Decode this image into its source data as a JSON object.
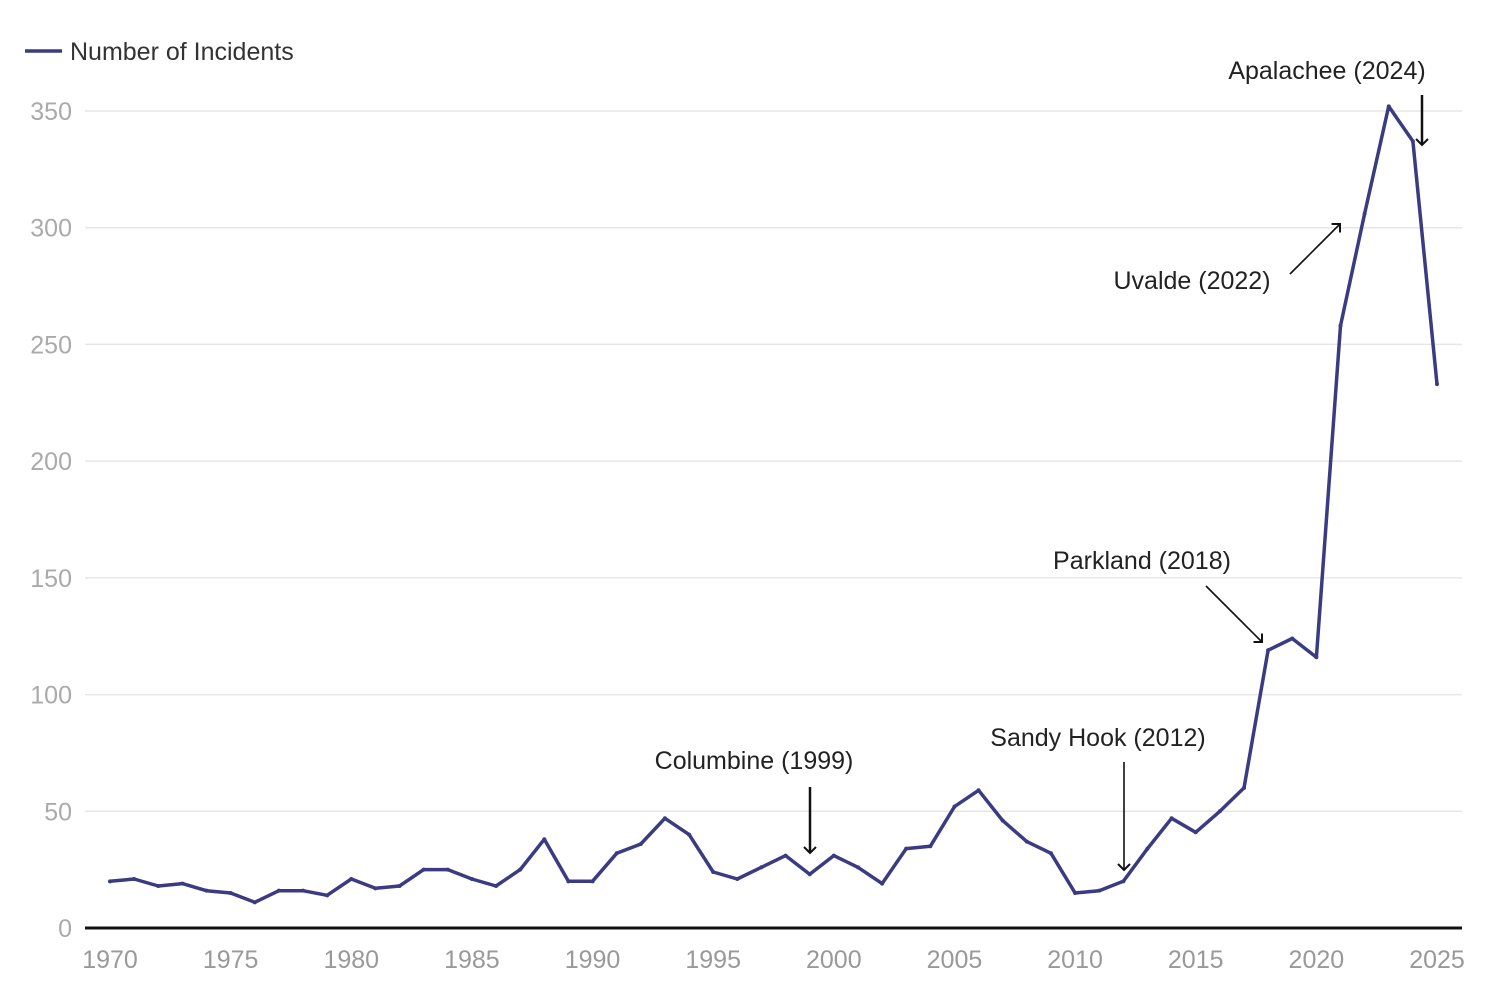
{
  "chart_data": {
    "type": "line",
    "title": "",
    "xlabel": "",
    "ylabel": "",
    "xlim": [
      1970,
      2025
    ],
    "ylim": [
      0,
      350
    ],
    "grid": true,
    "legend_placement": "top-left",
    "x_ticks": [
      "1970",
      "1975",
      "1980",
      "1985",
      "1990",
      "1995",
      "2000",
      "2005",
      "2010",
      "2015",
      "2020",
      "2025"
    ],
    "y_ticks": [
      "0",
      "50",
      "100",
      "150",
      "200",
      "250",
      "300",
      "350"
    ],
    "series": [
      {
        "name": "Number of Incidents",
        "color": "#3b3b82",
        "x": [
          1970,
          1971,
          1972,
          1973,
          1974,
          1975,
          1976,
          1977,
          1978,
          1979,
          1980,
          1981,
          1982,
          1983,
          1984,
          1985,
          1986,
          1987,
          1988,
          1989,
          1990,
          1991,
          1992,
          1993,
          1994,
          1995,
          1996,
          1997,
          1998,
          1999,
          2000,
          2001,
          2002,
          2003,
          2004,
          2005,
          2006,
          2007,
          2008,
          2009,
          2010,
          2011,
          2012,
          2013,
          2014,
          2015,
          2016,
          2017,
          2018,
          2019,
          2020,
          2021,
          2022,
          2023,
          2024,
          2025
        ],
        "values": [
          20,
          21,
          18,
          19,
          16,
          15,
          11,
          16,
          16,
          14,
          21,
          17,
          18,
          25,
          25,
          21,
          18,
          25,
          38,
          20,
          20,
          32,
          36,
          47,
          40,
          24,
          21,
          26,
          31,
          23,
          31,
          26,
          19,
          34,
          35,
          52,
          59,
          46,
          37,
          32,
          15,
          16,
          20,
          34,
          47,
          41,
          50,
          60,
          119,
          124,
          116,
          258,
          306,
          352,
          337,
          233
        ]
      }
    ],
    "annotations": [
      {
        "label": "Columbine (1999)",
        "year": 1999
      },
      {
        "label": "Sandy Hook (2012)",
        "year": 2012
      },
      {
        "label": "Parkland (2018)",
        "year": 2018
      },
      {
        "label": "Uvalde (2022)",
        "year": 2022
      },
      {
        "label": "Apalachee (2024)",
        "year": 2024
      }
    ]
  }
}
